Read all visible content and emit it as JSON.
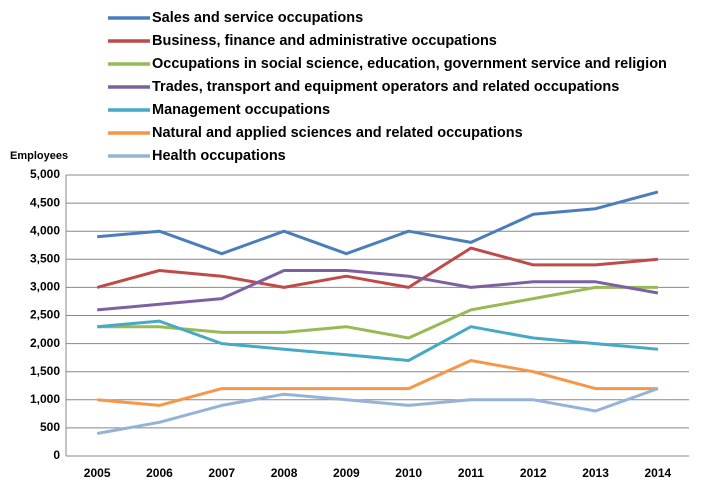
{
  "chart_data": {
    "type": "line",
    "y_label": "Employees",
    "categories": [
      "2005",
      "2006",
      "2007",
      "2008",
      "2009",
      "2010",
      "2011",
      "2012",
      "2013",
      "2014"
    ],
    "series": [
      {
        "name": "Sales and service occupations",
        "color": "#4a7ebb",
        "values": [
          3900,
          4000,
          3600,
          4000,
          3600,
          4000,
          3800,
          4300,
          4400,
          4700
        ]
      },
      {
        "name": "Business, finance and administrative occupations",
        "color": "#be4b48",
        "values": [
          3000,
          3300,
          3200,
          3000,
          3200,
          3000,
          3700,
          3400,
          3400,
          3500
        ]
      },
      {
        "name": "Occupations in social science, education, government service and religion",
        "color": "#98b954",
        "values": [
          2300,
          2300,
          2200,
          2200,
          2300,
          2100,
          2600,
          2800,
          3000,
          3000
        ]
      },
      {
        "name": "Trades, transport and equipment operators and related occupations",
        "color": "#7d60a0",
        "values": [
          2600,
          2700,
          2800,
          3300,
          3300,
          3200,
          3000,
          3100,
          3100,
          2900
        ]
      },
      {
        "name": "Management occupations",
        "color": "#46aac5",
        "values": [
          2300,
          2400,
          2000,
          1900,
          1800,
          1700,
          2300,
          2100,
          2000,
          1900
        ]
      },
      {
        "name": "Natural and applied sciences and related occupations",
        "color": "#f79646",
        "values": [
          1000,
          900,
          1200,
          1200,
          1200,
          1200,
          1700,
          1500,
          1200,
          1200
        ]
      },
      {
        "name": "Health occupations",
        "color": "#95b3d7",
        "values": [
          400,
          600,
          900,
          1100,
          1000,
          900,
          1000,
          1000,
          800,
          1200
        ]
      }
    ],
    "ylim": [
      0,
      5000
    ],
    "yticks": [
      0,
      500,
      {
        "value": 1000,
        "label": "1,000"
      },
      {
        "value": 1500,
        "label": "1,500"
      },
      {
        "value": 2000,
        "label": "2,000"
      },
      {
        "value": 2500,
        "label": "2,500"
      },
      {
        "value": 3000,
        "label": "3,000"
      },
      {
        "value": 3500,
        "label": "3,500"
      },
      {
        "value": 4000,
        "label": "4,000"
      },
      {
        "value": 4500,
        "label": "4,500"
      },
      {
        "value": 5000,
        "label": "5,000"
      }
    ],
    "grid": true,
    "legend": "top"
  }
}
